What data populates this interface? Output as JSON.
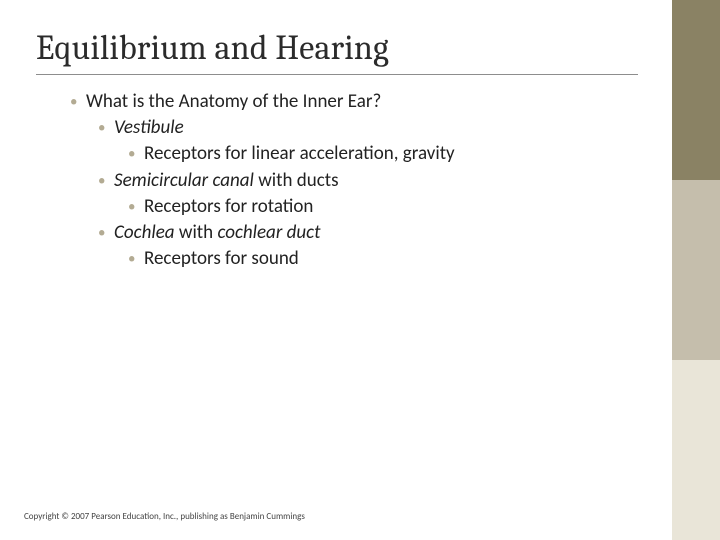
{
  "colors": {
    "sidebar_top": "#8a8264",
    "sidebar_mid": "#c5beac",
    "sidebar_bot": "#e9e5d8",
    "bullet": "#b3ab93",
    "title": "#2b2b2b",
    "rule": "#8d8d8d",
    "background": "#ffffff"
  },
  "title": "Equilibrium and Hearing",
  "body": {
    "l1_1": "What is the Anatomy of the Inner Ear?",
    "l2_1_italic": "Vestibule",
    "l3_1": "Receptors for linear acceleration, gravity",
    "l2_2_italic": "Semicircular canal",
    "l2_2_after": " with ducts",
    "l3_2": "Receptors for rotation",
    "l2_3_italic": "Cochlea",
    "l2_3_mid": " with ",
    "l2_3_italic2": "cochlear duct",
    "l3_3": "Receptors for sound"
  },
  "footer": "Copyright © 2007 Pearson Education, Inc., publishing as Benjamin Cummings"
}
